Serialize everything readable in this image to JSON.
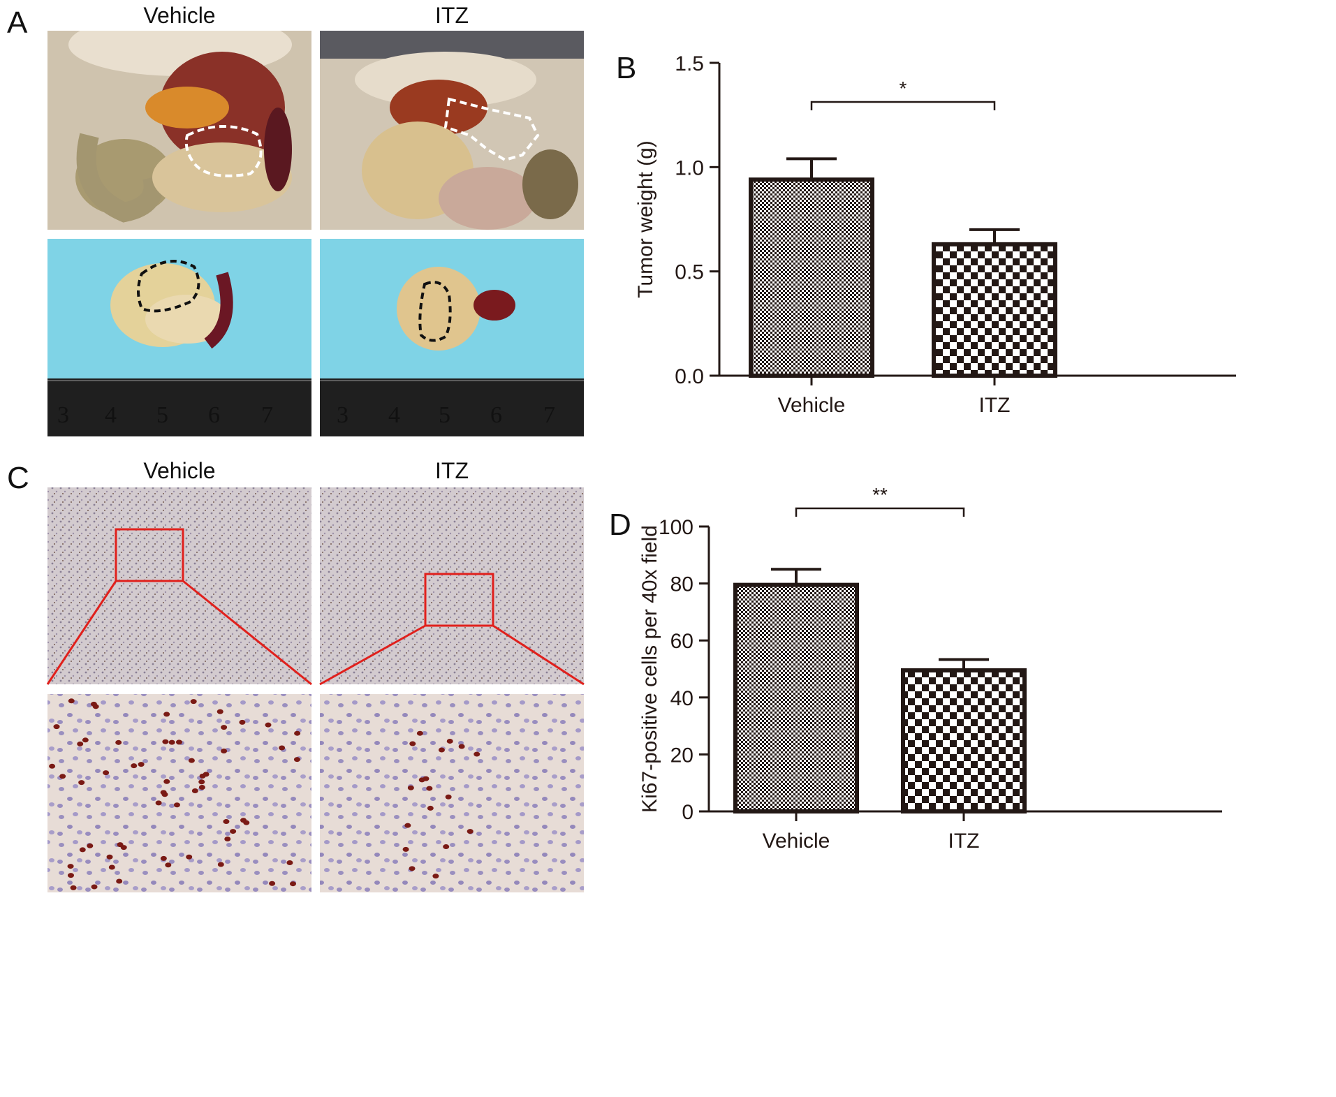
{
  "panels": {
    "a": {
      "letter": "A",
      "col_left": "Vehicle",
      "col_right": "ITZ",
      "ruler_numbers": [
        "3",
        "4",
        "5",
        "6",
        "7"
      ]
    },
    "b": {
      "letter": "B"
    },
    "c": {
      "letter": "C",
      "col_left": "Vehicle",
      "col_right": "ITZ"
    },
    "d": {
      "letter": "D"
    }
  },
  "colors": {
    "bar_border": "#231815",
    "bar_fill_dark": "#231815",
    "tissue_bg": "#7fd3e6",
    "zoom_box": "#e0201c",
    "ruler": "#1f1f1f"
  },
  "chart_data": [
    {
      "id": "B",
      "type": "bar",
      "categories": [
        "Vehicle",
        "ITZ"
      ],
      "values": [
        0.94,
        0.63
      ],
      "errors": [
        0.1,
        0.07
      ],
      "ylabel": "Tumor weight (g)",
      "xlabel": "",
      "ylim": [
        0,
        1.5
      ],
      "yticks": [
        "0.0",
        "0.5",
        "1.0",
        "1.5"
      ],
      "significance": "*",
      "fills": [
        "fine-check",
        "coarse-check"
      ]
    },
    {
      "id": "D",
      "type": "bar",
      "categories": [
        "Vehicle",
        "ITZ"
      ],
      "values": [
        79.5,
        49.5
      ],
      "errors": [
        5.5,
        3.8
      ],
      "ylabel": "Ki67-positive cells per 40x field",
      "xlabel": "",
      "ylim": [
        0,
        100
      ],
      "yticks": [
        "0",
        "20",
        "40",
        "60",
        "80",
        "100"
      ],
      "significance": "**",
      "fills": [
        "fine-check",
        "coarse-check"
      ]
    }
  ]
}
